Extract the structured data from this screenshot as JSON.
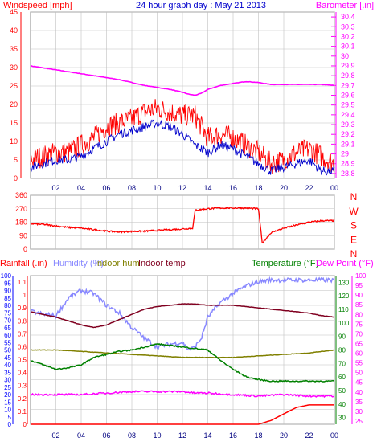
{
  "header": {
    "left": "Windspeed [mph]",
    "center": "24 hour graph day : May 21 2013",
    "right": "Barometer [.in]"
  },
  "colors": {
    "wind_axis": "#ff0000",
    "baro_axis": "#ff00ff",
    "wind_gust": "#ff0000",
    "wind_avg": "#0000cc",
    "barometer": "#ff00ff",
    "direction": "#ff0000",
    "rain": "#ff0000",
    "humidity": "#8888ff",
    "indoor_hum": "#808000",
    "indoor_temp": "#800020",
    "temperature": "#008000",
    "dew_point": "#ff00ff",
    "axis_blue": "#0000ff",
    "grid": "#c0c0c0"
  },
  "chart_data": [
    {
      "type": "line",
      "panel": "wind_barometer",
      "x_ticks": [
        "02",
        "04",
        "06",
        "08",
        "10",
        "12",
        "14",
        "16",
        "18",
        "20",
        "22",
        "00"
      ],
      "y_left": {
        "label": "Windspeed [mph]",
        "ticks": [
          0,
          5,
          10,
          15,
          20,
          25,
          30,
          35,
          40,
          45
        ],
        "range": [
          0,
          45
        ]
      },
      "y_right": {
        "label": "Barometer [.in]",
        "ticks": [
          "28.8",
          "28.9",
          "29",
          "29.1",
          "29.2",
          "29.3",
          "29.4",
          "29.5",
          "29.6",
          "29.7",
          "29.8",
          "29.9",
          "30",
          "30.1",
          "30.2",
          "30.3",
          "30.4"
        ],
        "range": [
          28.75,
          30.45
        ]
      },
      "series": [
        {
          "key": "barometer",
          "hours": [
            0,
            1,
            2,
            3,
            4,
            5,
            6,
            7,
            8,
            9,
            10,
            11,
            12,
            12.5,
            13,
            13.5,
            14,
            15,
            16,
            17,
            18,
            19,
            20,
            21,
            22,
            23,
            24
          ],
          "values": [
            29.9,
            29.88,
            29.86,
            29.84,
            29.82,
            29.8,
            29.78,
            29.76,
            29.73,
            29.7,
            29.68,
            29.66,
            29.63,
            29.61,
            29.6,
            29.62,
            29.66,
            29.7,
            29.72,
            29.74,
            29.73,
            29.71,
            29.71,
            29.71,
            29.71,
            29.71,
            29.7
          ]
        },
        {
          "key": "gust",
          "hours": [
            0,
            1,
            2,
            3,
            4,
            5,
            6,
            7,
            8,
            9,
            10,
            11,
            12,
            13,
            14,
            15,
            16,
            17,
            18,
            19,
            20,
            21,
            22,
            23,
            24
          ],
          "values": [
            5,
            6,
            7,
            7,
            9,
            11,
            14,
            15,
            16,
            18,
            19,
            18,
            17,
            17,
            11,
            12,
            11,
            9,
            7,
            4,
            5,
            7,
            8,
            6,
            4
          ]
        },
        {
          "key": "average",
          "hours": [
            0,
            1,
            2,
            3,
            4,
            5,
            6,
            7,
            8,
            9,
            10,
            11,
            12,
            13,
            14,
            15,
            16,
            17,
            18,
            19,
            20,
            21,
            22,
            23,
            24
          ],
          "values": [
            3,
            4,
            5,
            5,
            6,
            8,
            10,
            12,
            13,
            14,
            15,
            14,
            12,
            9,
            7,
            9,
            8,
            6,
            4,
            2,
            3,
            4,
            5,
            2,
            2
          ]
        }
      ]
    },
    {
      "type": "line",
      "panel": "wind_direction",
      "x_ticks": [
        "02",
        "04",
        "06",
        "08",
        "10",
        "12",
        "14",
        "16",
        "18",
        "20",
        "22",
        "00"
      ],
      "y_left": {
        "ticks": [
          0,
          90,
          180,
          270,
          360
        ],
        "range": [
          0,
          360
        ]
      },
      "y_right": {
        "labels": [
          "N",
          "W",
          "S",
          "E",
          "N"
        ]
      },
      "series": [
        {
          "key": "direction",
          "hours": [
            0,
            1,
            2,
            3,
            4,
            5,
            6,
            7,
            8,
            9,
            10,
            11,
            12,
            12.8,
            13,
            14,
            15,
            16,
            17,
            18,
            18.3,
            18.5,
            19,
            20,
            21,
            22,
            23,
            24
          ],
          "values": [
            170,
            165,
            155,
            145,
            140,
            130,
            120,
            115,
            118,
            120,
            125,
            130,
            135,
            140,
            260,
            270,
            275,
            275,
            275,
            270,
            40,
            60,
            110,
            140,
            160,
            180,
            190,
            190
          ]
        }
      ]
    },
    {
      "type": "line",
      "panel": "temperature_humidity",
      "legend": [
        "Rainfall (.in)",
        "Humidity (%)",
        "Indoor hum",
        "Indoor temp",
        "Temperature (°F)",
        "Dew Point (°F)"
      ],
      "x_ticks": [
        "02",
        "04",
        "06",
        "08",
        "10",
        "12",
        "14",
        "16",
        "18",
        "20",
        "22",
        "00"
      ],
      "y_humidity": {
        "ticks": [
          0,
          5,
          10,
          15,
          20,
          25,
          30,
          35,
          40,
          45,
          50,
          55,
          60,
          65,
          70,
          75,
          80,
          85,
          90,
          95,
          100
        ]
      },
      "y_rain": {
        "ticks": [
          "0",
          "0.1",
          "0.2",
          "0.3",
          "0.4",
          "0.5",
          "0.6",
          "0.7",
          "0.8",
          "0.9",
          "1",
          "1.1"
        ]
      },
      "y_temp": {
        "ticks": [
          30,
          40,
          50,
          60,
          70,
          80,
          90,
          100,
          110,
          120,
          130
        ]
      },
      "y_dew": {
        "ticks": [
          25,
          30,
          35,
          40,
          45,
          50,
          55,
          60,
          65,
          70,
          75,
          80,
          85,
          90,
          95,
          100
        ]
      },
      "series": [
        {
          "key": "humidity",
          "hours": [
            0,
            1,
            2,
            3,
            4,
            5,
            6,
            7,
            8,
            9,
            10,
            11,
            12,
            12.5,
            13,
            13.5,
            14,
            15,
            16,
            17,
            18,
            19,
            20,
            21,
            22,
            23,
            24
          ],
          "values": [
            76,
            74,
            73,
            85,
            90,
            88,
            80,
            75,
            65,
            58,
            52,
            54,
            55,
            50,
            52,
            58,
            72,
            82,
            88,
            93,
            96,
            97,
            97,
            97,
            97,
            97,
            97
          ]
        },
        {
          "key": "indoor_temp",
          "hours": [
            0,
            1,
            2,
            3,
            4,
            5,
            6,
            7,
            8,
            9,
            10,
            11,
            12,
            13,
            14,
            15,
            16,
            17,
            18,
            19,
            20,
            21,
            22,
            23,
            24
          ],
          "values": [
            86,
            84,
            82,
            79,
            76,
            74,
            76,
            80,
            84,
            88,
            90,
            91,
            92,
            92,
            91,
            91,
            91,
            90,
            89,
            88,
            87,
            86,
            85,
            83,
            82
          ]
        },
        {
          "key": "indoor_hum",
          "hours": [
            0,
            2,
            4,
            6,
            8,
            10,
            12,
            13,
            14,
            16,
            18,
            20,
            22,
            24
          ],
          "values": [
            50,
            50,
            49,
            48,
            47,
            46,
            45,
            45,
            45,
            45,
            46,
            47,
            48,
            50
          ]
        },
        {
          "key": "temperature",
          "hours": [
            0,
            1,
            2,
            3,
            4,
            5,
            6,
            7,
            8,
            9,
            10,
            11,
            12,
            13,
            14,
            15,
            16,
            17,
            18,
            19,
            20,
            21,
            22,
            23,
            24
          ],
          "values": [
            58,
            55,
            52,
            53,
            55,
            60,
            62,
            64,
            65,
            67,
            69,
            68,
            67,
            66,
            65,
            58,
            52,
            47,
            45,
            44,
            44,
            44,
            44,
            44,
            44
          ]
        },
        {
          "key": "dew_point",
          "hours": [
            0,
            2,
            4,
            6,
            8,
            10,
            12,
            13,
            14,
            16,
            18,
            20,
            22,
            24
          ],
          "values": [
            38,
            38,
            38,
            39,
            40,
            40,
            40,
            39,
            39,
            38,
            37,
            38,
            37,
            37
          ]
        },
        {
          "key": "rain",
          "hours": [
            0,
            2,
            4,
            6,
            8,
            10,
            12,
            14,
            16,
            18,
            19,
            20,
            21,
            22,
            24
          ],
          "values": [
            0,
            0,
            0,
            0,
            0,
            0,
            0,
            0,
            0,
            0,
            0.03,
            0.08,
            0.13,
            0.15,
            0.15
          ]
        }
      ]
    }
  ]
}
